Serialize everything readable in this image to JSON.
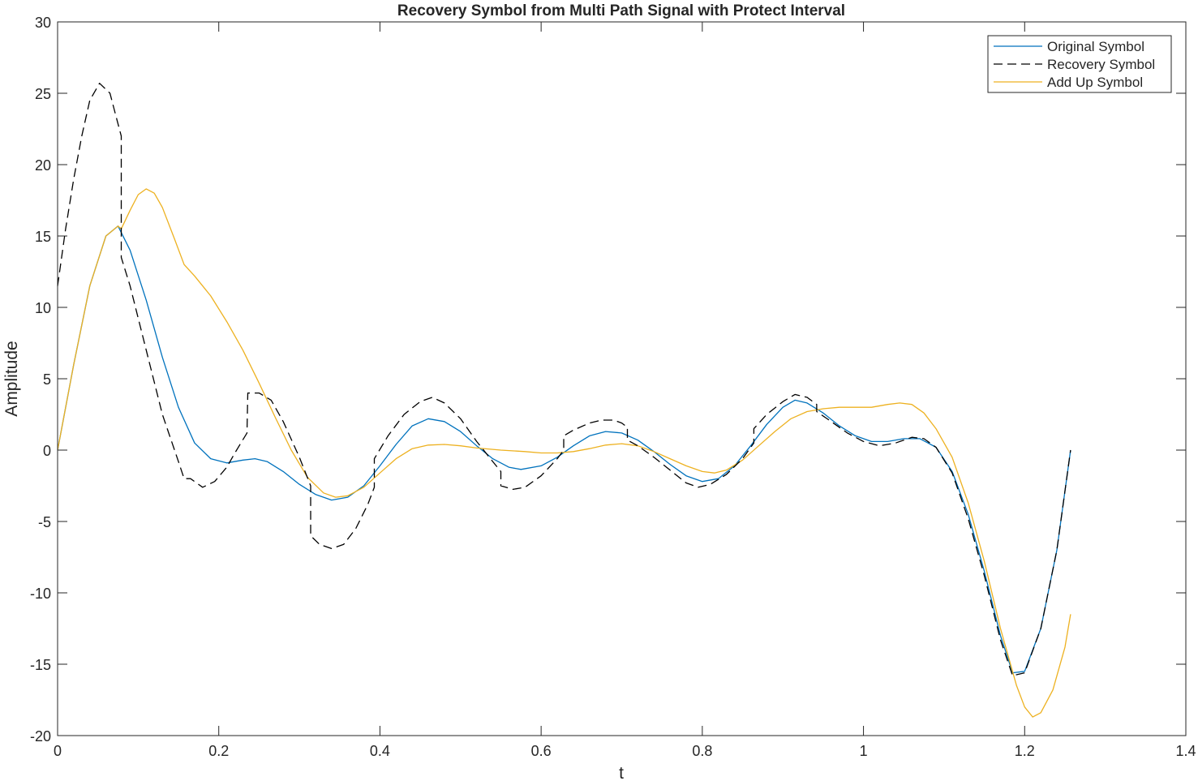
{
  "chart_data": {
    "type": "line",
    "title": "Recovery Symbol from Multi Path Signal with Protect Interval",
    "xlabel": "t",
    "ylabel": "Amplitude",
    "xlim": [
      0,
      1.4
    ],
    "ylim": [
      -20,
      30
    ],
    "xticks": [
      0,
      0.2,
      0.4,
      0.6,
      0.8,
      1,
      1.2,
      1.4
    ],
    "xtick_labels": [
      "0",
      "0.2",
      "0.4",
      "0.6",
      "0.8",
      "1",
      "1.2",
      "1.4"
    ],
    "yticks": [
      -20,
      -15,
      -10,
      -5,
      0,
      5,
      10,
      15,
      20,
      25,
      30
    ],
    "ytick_labels": [
      "-20",
      "-15",
      "-10",
      "-5",
      "0",
      "5",
      "10",
      "15",
      "20",
      "25",
      "30"
    ],
    "grid": false,
    "legend_position": "top-right",
    "series": [
      {
        "name": "Original Symbol",
        "color": "#0072BD",
        "style": "solid",
        "points": [
          [
            0,
            0
          ],
          [
            0.02,
            6
          ],
          [
            0.04,
            11.5
          ],
          [
            0.06,
            15
          ],
          [
            0.075,
            15.7
          ],
          [
            0.09,
            14
          ],
          [
            0.11,
            10.5
          ],
          [
            0.13,
            6.5
          ],
          [
            0.15,
            3
          ],
          [
            0.17,
            0.5
          ],
          [
            0.19,
            -0.6
          ],
          [
            0.21,
            -0.9
          ],
          [
            0.23,
            -0.7
          ],
          [
            0.245,
            -0.6
          ],
          [
            0.26,
            -0.8
          ],
          [
            0.28,
            -1.5
          ],
          [
            0.3,
            -2.4
          ],
          [
            0.32,
            -3.1
          ],
          [
            0.34,
            -3.5
          ],
          [
            0.36,
            -3.3
          ],
          [
            0.38,
            -2.5
          ],
          [
            0.4,
            -1.1
          ],
          [
            0.42,
            0.4
          ],
          [
            0.44,
            1.7
          ],
          [
            0.46,
            2.2
          ],
          [
            0.48,
            2
          ],
          [
            0.5,
            1.3
          ],
          [
            0.52,
            0.3
          ],
          [
            0.54,
            -0.6
          ],
          [
            0.56,
            -1.2
          ],
          [
            0.575,
            -1.35
          ],
          [
            0.6,
            -1.1
          ],
          [
            0.62,
            -0.5
          ],
          [
            0.64,
            0.3
          ],
          [
            0.66,
            1
          ],
          [
            0.68,
            1.3
          ],
          [
            0.7,
            1.2
          ],
          [
            0.72,
            0.7
          ],
          [
            0.74,
            -0.1
          ],
          [
            0.76,
            -1
          ],
          [
            0.78,
            -1.8
          ],
          [
            0.8,
            -2.2
          ],
          [
            0.82,
            -2
          ],
          [
            0.84,
            -1.1
          ],
          [
            0.86,
            0.3
          ],
          [
            0.88,
            1.8
          ],
          [
            0.9,
            3
          ],
          [
            0.915,
            3.5
          ],
          [
            0.93,
            3.3
          ],
          [
            0.95,
            2.6
          ],
          [
            0.97,
            1.7
          ],
          [
            0.99,
            1
          ],
          [
            1.01,
            0.6
          ],
          [
            1.03,
            0.6
          ],
          [
            1.05,
            0.8
          ],
          [
            1.07,
            0.8
          ],
          [
            1.09,
            0.2
          ],
          [
            1.11,
            -1.5
          ],
          [
            1.13,
            -4.5
          ],
          [
            1.15,
            -8.5
          ],
          [
            1.17,
            -13
          ],
          [
            1.185,
            -15.6
          ],
          [
            1.2,
            -15.5
          ],
          [
            1.22,
            -12.5
          ],
          [
            1.24,
            -7
          ],
          [
            1.257,
            0
          ]
        ]
      },
      {
        "name": "Recovery Symbol",
        "color": "#000000",
        "style": "dashed",
        "points": [
          [
            0,
            11.5
          ],
          [
            0.01,
            15.5
          ],
          [
            0.02,
            19
          ],
          [
            0.03,
            22
          ],
          [
            0.04,
            24.5
          ],
          [
            0.052,
            25.7
          ],
          [
            0.065,
            25
          ],
          [
            0.072,
            23.5
          ],
          [
            0.079,
            22
          ],
          [
            0.079,
            13.5
          ],
          [
            0.09,
            11.5
          ],
          [
            0.11,
            7
          ],
          [
            0.13,
            2.5
          ],
          [
            0.15,
            -0.8
          ],
          [
            0.157,
            -2
          ],
          [
            0.165,
            -2
          ],
          [
            0.18,
            -2.6
          ],
          [
            0.195,
            -2.2
          ],
          [
            0.21,
            -1.2
          ],
          [
            0.22,
            -0.2
          ],
          [
            0.235,
            1.2
          ],
          [
            0.236,
            4
          ],
          [
            0.25,
            4
          ],
          [
            0.265,
            3.5
          ],
          [
            0.28,
            2
          ],
          [
            0.3,
            -0.5
          ],
          [
            0.314,
            -2.5
          ],
          [
            0.314,
            -6
          ],
          [
            0.325,
            -6.6
          ],
          [
            0.34,
            -6.9
          ],
          [
            0.355,
            -6.6
          ],
          [
            0.37,
            -5.5
          ],
          [
            0.385,
            -3.8
          ],
          [
            0.393,
            -2.6
          ],
          [
            0.393,
            -0.6
          ],
          [
            0.41,
            1
          ],
          [
            0.43,
            2.5
          ],
          [
            0.45,
            3.4
          ],
          [
            0.465,
            3.7
          ],
          [
            0.48,
            3.3
          ],
          [
            0.5,
            2.2
          ],
          [
            0.52,
            0.6
          ],
          [
            0.54,
            -0.8
          ],
          [
            0.55,
            -1.5
          ],
          [
            0.55,
            -2.5
          ],
          [
            0.565,
            -2.75
          ],
          [
            0.58,
            -2.6
          ],
          [
            0.6,
            -1.8
          ],
          [
            0.62,
            -0.6
          ],
          [
            0.628,
            0
          ],
          [
            0.628,
            1
          ],
          [
            0.64,
            1.4
          ],
          [
            0.66,
            1.9
          ],
          [
            0.675,
            2.1
          ],
          [
            0.69,
            2.1
          ],
          [
            0.7,
            1.9
          ],
          [
            0.707,
            1.6
          ],
          [
            0.707,
            0.7
          ],
          [
            0.72,
            0.3
          ],
          [
            0.74,
            -0.5
          ],
          [
            0.76,
            -1.4
          ],
          [
            0.78,
            -2.3
          ],
          [
            0.795,
            -2.6
          ],
          [
            0.81,
            -2.4
          ],
          [
            0.83,
            -1.7
          ],
          [
            0.85,
            -0.6
          ],
          [
            0.864,
            0.5
          ],
          [
            0.864,
            1.5
          ],
          [
            0.88,
            2.5
          ],
          [
            0.9,
            3.4
          ],
          [
            0.915,
            3.9
          ],
          [
            0.93,
            3.7
          ],
          [
            0.942,
            3.2
          ],
          [
            0.942,
            2.7
          ],
          [
            0.96,
            2
          ],
          [
            0.98,
            1.2
          ],
          [
            1,
            0.6
          ],
          [
            1.02,
            0.3
          ],
          [
            1.04,
            0.5
          ],
          [
            1.06,
            0.9
          ],
          [
            1.075,
            0.8
          ],
          [
            1.09,
            0.2
          ],
          [
            1.11,
            -1.6
          ],
          [
            1.13,
            -4.8
          ],
          [
            1.15,
            -8.8
          ],
          [
            1.17,
            -13.3
          ],
          [
            1.185,
            -15.8
          ],
          [
            1.2,
            -15.6
          ],
          [
            1.22,
            -12.5
          ],
          [
            1.24,
            -7
          ],
          [
            1.257,
            0
          ]
        ]
      },
      {
        "name": "Add Up Symbol",
        "color": "#EDB120",
        "style": "solid",
        "points": [
          [
            0,
            0
          ],
          [
            0.02,
            6
          ],
          [
            0.04,
            11.5
          ],
          [
            0.06,
            15
          ],
          [
            0.075,
            15.7
          ],
          [
            0.079,
            15.5
          ],
          [
            0.09,
            16.8
          ],
          [
            0.1,
            17.9
          ],
          [
            0.11,
            18.3
          ],
          [
            0.12,
            18
          ],
          [
            0.13,
            17
          ],
          [
            0.145,
            14.8
          ],
          [
            0.157,
            13
          ],
          [
            0.17,
            12.2
          ],
          [
            0.19,
            10.8
          ],
          [
            0.21,
            9
          ],
          [
            0.23,
            7
          ],
          [
            0.25,
            4.7
          ],
          [
            0.27,
            2.3
          ],
          [
            0.29,
            0
          ],
          [
            0.31,
            -1.9
          ],
          [
            0.33,
            -3
          ],
          [
            0.345,
            -3.3
          ],
          [
            0.36,
            -3.2
          ],
          [
            0.38,
            -2.6
          ],
          [
            0.4,
            -1.6
          ],
          [
            0.42,
            -0.6
          ],
          [
            0.44,
            0.1
          ],
          [
            0.46,
            0.35
          ],
          [
            0.48,
            0.4
          ],
          [
            0.5,
            0.3
          ],
          [
            0.52,
            0.15
          ],
          [
            0.55,
            0
          ],
          [
            0.58,
            -0.1
          ],
          [
            0.6,
            -0.2
          ],
          [
            0.62,
            -0.2
          ],
          [
            0.64,
            -0.1
          ],
          [
            0.66,
            0.1
          ],
          [
            0.68,
            0.35
          ],
          [
            0.7,
            0.45
          ],
          [
            0.72,
            0.3
          ],
          [
            0.74,
            -0.1
          ],
          [
            0.76,
            -0.6
          ],
          [
            0.78,
            -1.1
          ],
          [
            0.8,
            -1.5
          ],
          [
            0.815,
            -1.6
          ],
          [
            0.83,
            -1.4
          ],
          [
            0.85,
            -0.7
          ],
          [
            0.87,
            0.3
          ],
          [
            0.89,
            1.3
          ],
          [
            0.91,
            2.2
          ],
          [
            0.93,
            2.7
          ],
          [
            0.95,
            2.9
          ],
          [
            0.97,
            3
          ],
          [
            0.99,
            3
          ],
          [
            1.01,
            3
          ],
          [
            1.03,
            3.2
          ],
          [
            1.045,
            3.3
          ],
          [
            1.06,
            3.2
          ],
          [
            1.075,
            2.6
          ],
          [
            1.09,
            1.5
          ],
          [
            1.11,
            -0.5
          ],
          [
            1.13,
            -3.7
          ],
          [
            1.15,
            -7.8
          ],
          [
            1.17,
            -12.5
          ],
          [
            1.19,
            -16.5
          ],
          [
            1.2,
            -18
          ],
          [
            1.21,
            -18.7
          ],
          [
            1.22,
            -18.4
          ],
          [
            1.235,
            -16.8
          ],
          [
            1.25,
            -13.8
          ],
          [
            1.257,
            -11.5
          ]
        ]
      }
    ]
  }
}
